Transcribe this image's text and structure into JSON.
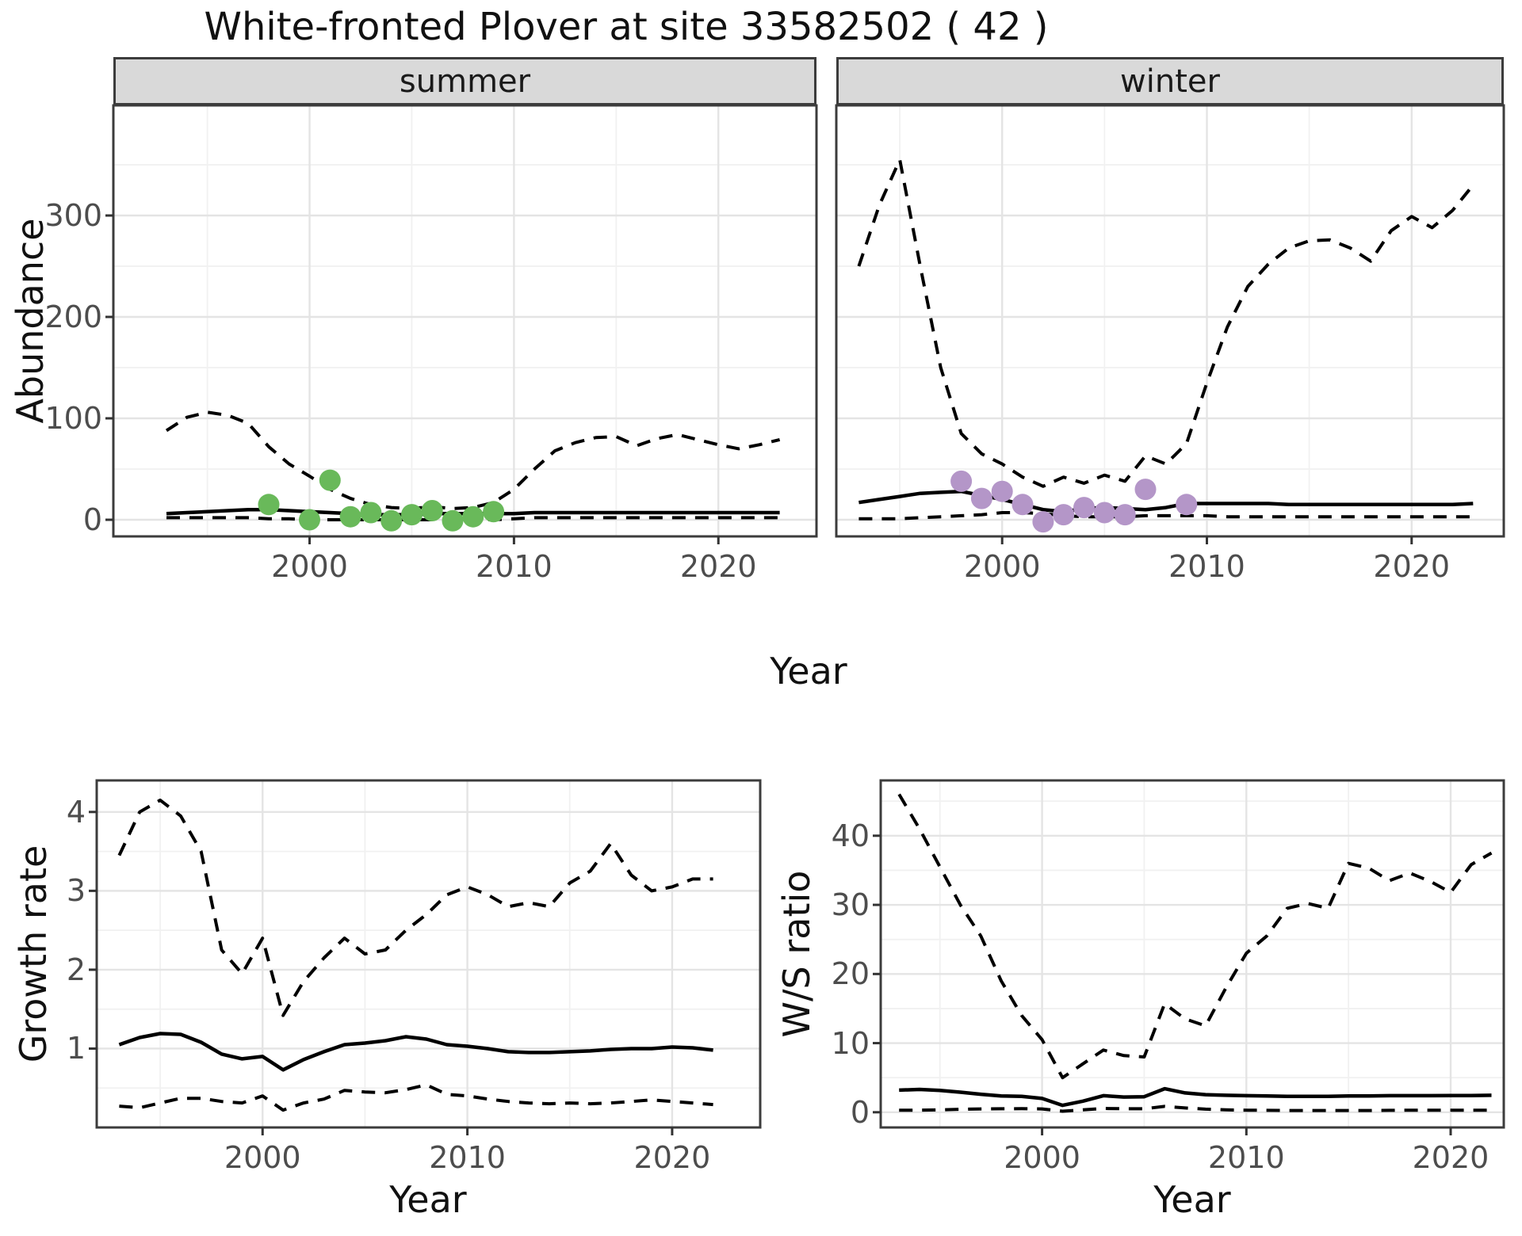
{
  "title": "White-fronted Plover at site 33582502 ( 42 )",
  "colors": {
    "summer_point": "#69b95a",
    "winter_point": "#b496c8",
    "line": "#000000",
    "strip_bg": "#d9d9d9",
    "panel_border": "#3c3c3c",
    "grid_major": "#e4e4e4",
    "grid_minor": "#f1f1f1",
    "axis_text": "#4d4d4d"
  },
  "chart_data": [
    {
      "id": "abundance_summer",
      "type": "line",
      "strip": "summer",
      "ylabel": "Abundance",
      "xlabel": "Year",
      "legend_position": "none",
      "grid": true,
      "xlim": [
        1990.4,
        2024.8
      ],
      "ylim": [
        -16.4,
        408.6
      ],
      "x_ticks": [
        2000,
        2010,
        2020
      ],
      "x_minor": [
        1995,
        2005,
        2015
      ],
      "y_ticks": [
        0,
        100,
        200,
        300
      ],
      "y_minor": [
        50,
        150,
        250,
        350
      ],
      "years": [
        1993,
        1994,
        1995,
        1996,
        1997,
        1998,
        1999,
        2000,
        2001,
        2002,
        2003,
        2004,
        2005,
        2006,
        2007,
        2008,
        2009,
        2010,
        2011,
        2012,
        2013,
        2014,
        2015,
        2016,
        2017,
        2018,
        2019,
        2020,
        2021,
        2022,
        2023
      ],
      "series": [
        {
          "name": "median",
          "style": "solid",
          "values": [
            6,
            7,
            8,
            9,
            10,
            10,
            9,
            8,
            7,
            6,
            5,
            5,
            5,
            6,
            6,
            6,
            6,
            6,
            7,
            7,
            7,
            7,
            7,
            7,
            7,
            7,
            7,
            7,
            7,
            7,
            7
          ]
        },
        {
          "name": "upper_95ci",
          "style": "dashed",
          "values": [
            88,
            101,
            106,
            103,
            95,
            72,
            55,
            43,
            30,
            21,
            15,
            12,
            11,
            13,
            11,
            12,
            17,
            30,
            50,
            68,
            76,
            81,
            82,
            73,
            80,
            84,
            79,
            74,
            70,
            74,
            79
          ]
        },
        {
          "name": "lower_95ci",
          "style": "dashed",
          "values": [
            2,
            2,
            2,
            2,
            2,
            1,
            1,
            0,
            0,
            0,
            0,
            0,
            0,
            0,
            0,
            0,
            0,
            1,
            2,
            2,
            2,
            2,
            2,
            2,
            2,
            2,
            2,
            2,
            2,
            2,
            2
          ]
        }
      ],
      "points": {
        "name": "observed_counts_summer",
        "color_key": "summer_point",
        "data": [
          [
            1998,
            15
          ],
          [
            2000,
            0
          ],
          [
            2001,
            39
          ],
          [
            2002,
            3
          ],
          [
            2003,
            7
          ],
          [
            2004,
            -1
          ],
          [
            2005,
            5
          ],
          [
            2006,
            9
          ],
          [
            2007,
            -1
          ],
          [
            2008,
            3
          ],
          [
            2009,
            8
          ]
        ]
      }
    },
    {
      "id": "abundance_winter",
      "type": "line",
      "strip": "winter",
      "ylabel": "",
      "xlabel": "Year",
      "legend_position": "none",
      "grid": true,
      "xlim": [
        1991.9,
        2024.5
      ],
      "ylim": [
        -16.4,
        408.6
      ],
      "x_ticks": [
        2000,
        2010,
        2020
      ],
      "x_minor": [
        1995,
        2005,
        2015
      ],
      "y_ticks": [
        0,
        100,
        200,
        300
      ],
      "y_minor": [
        50,
        150,
        250,
        350
      ],
      "years": [
        1993,
        1994,
        1995,
        1996,
        1997,
        1998,
        1999,
        2000,
        2001,
        2002,
        2003,
        2004,
        2005,
        2006,
        2007,
        2008,
        2009,
        2010,
        2011,
        2012,
        2013,
        2014,
        2015,
        2016,
        2017,
        2018,
        2019,
        2020,
        2021,
        2022,
        2023
      ],
      "series": [
        {
          "name": "median",
          "style": "solid",
          "values": [
            17,
            20,
            23,
            26,
            27,
            28,
            24,
            20,
            15,
            10,
            8,
            11,
            12,
            11,
            10,
            12,
            16,
            16,
            16,
            16,
            16,
            15,
            15,
            15,
            15,
            15,
            15,
            15,
            15,
            15,
            16
          ]
        },
        {
          "name": "upper_95ci",
          "style": "dashed",
          "values": [
            250,
            310,
            355,
            250,
            150,
            85,
            65,
            55,
            42,
            33,
            42,
            36,
            44,
            38,
            63,
            55,
            75,
            135,
            190,
            230,
            252,
            268,
            275,
            276,
            268,
            255,
            285,
            299,
            288,
            305,
            330
          ]
        },
        {
          "name": "lower_95ci",
          "style": "dashed",
          "values": [
            1,
            1,
            1,
            2,
            3,
            4,
            5,
            7,
            7,
            6,
            4,
            3,
            3,
            3,
            4,
            4,
            4,
            4,
            3,
            3,
            3,
            3,
            3,
            3,
            3,
            3,
            3,
            3,
            3,
            3,
            3
          ]
        }
      ],
      "points": {
        "name": "observed_counts_winter",
        "color_key": "winter_point",
        "data": [
          [
            1998,
            38
          ],
          [
            1999,
            21
          ],
          [
            2000,
            28
          ],
          [
            2001,
            15
          ],
          [
            2002,
            -2
          ],
          [
            2003,
            5
          ],
          [
            2004,
            12
          ],
          [
            2005,
            7
          ],
          [
            2006,
            5
          ],
          [
            2007,
            30
          ],
          [
            2009,
            15
          ]
        ]
      }
    },
    {
      "id": "growth_rate",
      "type": "line",
      "strip": "",
      "ylabel": "Growth rate",
      "xlabel": "Year",
      "legend_position": "none",
      "grid": true,
      "xlim": [
        1991.9,
        2024.3
      ],
      "ylim": [
        0.0,
        4.4
      ],
      "x_ticks": [
        2000,
        2010,
        2020
      ],
      "x_minor": [
        1995,
        2005,
        2015
      ],
      "y_ticks": [
        1,
        2,
        3,
        4
      ],
      "y_minor": [
        0.5,
        1.5,
        2.5,
        3.5
      ],
      "years": [
        1993,
        1994,
        1995,
        1996,
        1997,
        1998,
        1999,
        2000,
        2001,
        2002,
        2003,
        2004,
        2005,
        2006,
        2007,
        2008,
        2009,
        2010,
        2011,
        2012,
        2013,
        2014,
        2015,
        2016,
        2017,
        2018,
        2019,
        2020,
        2021,
        2022
      ],
      "series": [
        {
          "name": "median",
          "style": "solid",
          "values": [
            1.05,
            1.14,
            1.19,
            1.18,
            1.08,
            0.93,
            0.87,
            0.9,
            0.73,
            0.86,
            0.96,
            1.05,
            1.07,
            1.1,
            1.15,
            1.12,
            1.05,
            1.03,
            1.0,
            0.96,
            0.95,
            0.95,
            0.96,
            0.97,
            0.99,
            1.0,
            1.0,
            1.02,
            1.01,
            0.98
          ]
        },
        {
          "name": "upper_95ci",
          "style": "dashed",
          "values": [
            3.45,
            4.0,
            4.15,
            3.95,
            3.5,
            2.25,
            1.95,
            2.4,
            1.42,
            1.85,
            2.15,
            2.4,
            2.2,
            2.25,
            2.5,
            2.7,
            2.95,
            3.05,
            2.95,
            2.8,
            2.85,
            2.8,
            3.1,
            3.25,
            3.6,
            3.2,
            3.0,
            3.05,
            3.15,
            3.15
          ]
        },
        {
          "name": "lower_95ci",
          "style": "dashed",
          "values": [
            0.27,
            0.25,
            0.31,
            0.37,
            0.37,
            0.33,
            0.31,
            0.4,
            0.22,
            0.31,
            0.36,
            0.47,
            0.45,
            0.44,
            0.48,
            0.54,
            0.42,
            0.4,
            0.36,
            0.33,
            0.31,
            0.3,
            0.31,
            0.3,
            0.31,
            0.33,
            0.35,
            0.33,
            0.31,
            0.29
          ]
        }
      ],
      "points": null
    },
    {
      "id": "ws_ratio",
      "type": "line",
      "strip": "",
      "ylabel": "W/S ratio",
      "xlabel": "Year",
      "legend_position": "none",
      "grid": true,
      "xlim": [
        1992.1,
        2022.6
      ],
      "ylim": [
        -2.2,
        48.0
      ],
      "x_ticks": [
        2000,
        2010,
        2020
      ],
      "x_minor": [
        1995,
        2005,
        2015
      ],
      "y_ticks": [
        0,
        10,
        20,
        30,
        40
      ],
      "y_minor": [
        5,
        15,
        25,
        35,
        45
      ],
      "years": [
        1993,
        1994,
        1995,
        1996,
        1997,
        1998,
        1999,
        2000,
        2001,
        2002,
        2003,
        2004,
        2005,
        2006,
        2007,
        2008,
        2009,
        2010,
        2011,
        2012,
        2013,
        2014,
        2015,
        2016,
        2017,
        2018,
        2019,
        2020,
        2021,
        2022
      ],
      "series": [
        {
          "name": "median",
          "style": "solid",
          "values": [
            3.2,
            3.3,
            3.15,
            2.9,
            2.6,
            2.35,
            2.3,
            2.0,
            1.0,
            1.6,
            2.4,
            2.2,
            2.25,
            3.4,
            2.8,
            2.55,
            2.45,
            2.4,
            2.35,
            2.3,
            2.3,
            2.3,
            2.35,
            2.35,
            2.4,
            2.4,
            2.4,
            2.42,
            2.42,
            2.45
          ]
        },
        {
          "name": "upper_95ci",
          "style": "dashed",
          "values": [
            46,
            41,
            35.5,
            30,
            25.5,
            19,
            14,
            10.5,
            5,
            7,
            9,
            8.2,
            8,
            15.7,
            13.5,
            12.5,
            18,
            23,
            25.5,
            29.5,
            30.2,
            29.5,
            36,
            35.3,
            33.5,
            34.6,
            33.4,
            31.8,
            35.8,
            37.5
          ]
        },
        {
          "name": "lower_95ci",
          "style": "dashed",
          "values": [
            0.3,
            0.3,
            0.35,
            0.42,
            0.48,
            0.5,
            0.52,
            0.48,
            0.15,
            0.35,
            0.55,
            0.5,
            0.5,
            0.85,
            0.62,
            0.45,
            0.35,
            0.3,
            0.28,
            0.25,
            0.25,
            0.25,
            0.25,
            0.25,
            0.27,
            0.3,
            0.3,
            0.3,
            0.3,
            0.3
          ]
        }
      ],
      "points": null
    }
  ]
}
